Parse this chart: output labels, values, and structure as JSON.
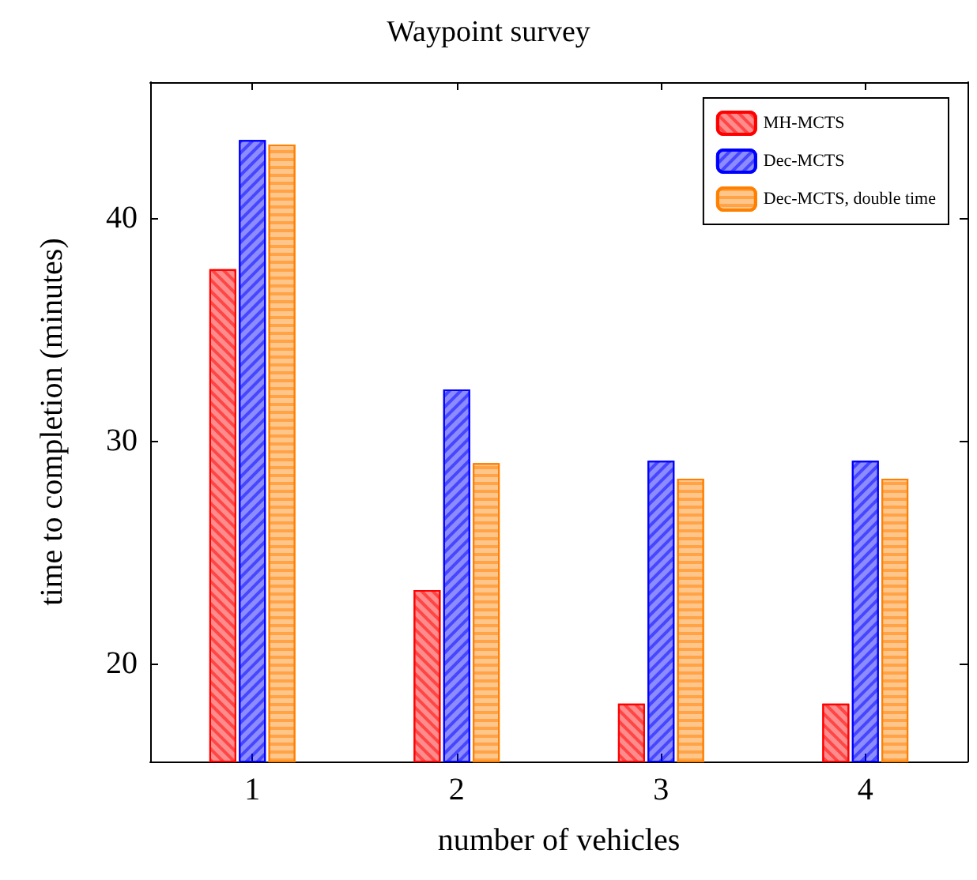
{
  "chart_data": {
    "type": "bar",
    "title": "Waypoint survey",
    "xlabel": "number of vehicles",
    "ylabel": "time to completion (minutes)",
    "categories": [
      "1",
      "2",
      "3",
      "4"
    ],
    "series": [
      {
        "name": "MH-MCTS",
        "color": "#ff0000",
        "values": [
          37.7,
          23.3,
          18.2,
          18.2
        ]
      },
      {
        "name": "Dec-MCTS",
        "color": "#0000ff",
        "values": [
          43.5,
          32.3,
          29.1,
          29.1
        ]
      },
      {
        "name": "Dec-MCTS, double time",
        "color": "#ff8000",
        "values": [
          43.3,
          29.0,
          28.3,
          28.3
        ]
      }
    ],
    "ylim": [
      15.6,
      46.1
    ],
    "yticks": [
      20,
      30,
      40
    ],
    "grid": false,
    "legend": "top right"
  }
}
